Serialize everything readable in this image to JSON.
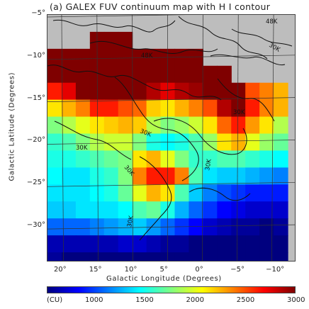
{
  "title": "(a) GALEX FUV continuum map with H I contour",
  "axes": {
    "xlabel": "Galactic Longitude (Degrees)",
    "ylabel": "Galactic Latitude (Degrees)",
    "x_ticks": [
      "20°",
      "15°",
      "10°",
      "5°",
      "0°",
      "−5°",
      "−10°"
    ],
    "y_ticks": [
      "−5°",
      "−10°",
      "−15°",
      "−20°",
      "−25°",
      "−30°"
    ]
  },
  "colorbar": {
    "unit_label": "(CU)",
    "ticks": [
      "1000",
      "1500",
      "2000",
      "2500",
      "3000"
    ],
    "colors": [
      "#00007f",
      "#0000ff",
      "#0080ff",
      "#00ffff",
      "#80ff80",
      "#ffff00",
      "#ff8000",
      "#ff0000",
      "#7f0000"
    ]
  },
  "contours": {
    "labels": [
      "48K",
      "48K",
      "30K",
      "30K",
      "30K",
      "30K",
      "30K",
      "30K",
      "30K"
    ]
  },
  "chart_data": {
    "type": "heatmap",
    "title": "(a) GALEX FUV continuum map with H I contour",
    "xlabel": "Galactic Longitude (Degrees)",
    "ylabel": "Galactic Latitude (Degrees)",
    "xlim": [
      22,
      -13
    ],
    "ylim": [
      -34,
      -5
    ],
    "colorbar_range": [
      1000,
      3000
    ],
    "colorbar_unit": "CU",
    "contour_levels": [
      "30K",
      "48K"
    ],
    "no_data_color": "#bdbdbd",
    "grid": true,
    "rows_lat": [
      -6,
      -8,
      -10,
      -12,
      -14,
      -16,
      -18,
      -20,
      -22,
      -24,
      -26,
      -28,
      -30,
      -32,
      -34
    ],
    "cols_lon": [
      21,
      19,
      17,
      15,
      13,
      11,
      9,
      7,
      5,
      3,
      1,
      -1,
      -3,
      -5,
      -7,
      -9,
      -11
    ],
    "values": [
      [
        null,
        null,
        null,
        null,
        null,
        null,
        null,
        null,
        null,
        null,
        null,
        null,
        null,
        null,
        null,
        null,
        null
      ],
      [
        null,
        null,
        null,
        3000,
        3000,
        3000,
        null,
        null,
        null,
        null,
        null,
        null,
        null,
        null,
        null,
        null,
        null
      ],
      [
        3000,
        3000,
        3000,
        3000,
        3000,
        3000,
        3000,
        3000,
        3000,
        3000,
        3000,
        null,
        null,
        null,
        null,
        null,
        null
      ],
      [
        3000,
        3000,
        3000,
        3000,
        3000,
        3000,
        3000,
        3000,
        3000,
        3000,
        3000,
        3000,
        3000,
        null,
        null,
        null,
        null
      ],
      [
        2700,
        2800,
        3000,
        3000,
        3000,
        3000,
        3000,
        2900,
        2800,
        2900,
        2950,
        3000,
        3000,
        3000,
        2600,
        2500,
        2400
      ],
      [
        2300,
        2400,
        2500,
        2700,
        2700,
        2600,
        2550,
        2350,
        2300,
        2400,
        2500,
        2600,
        2900,
        3000,
        2700,
        2500,
        2400
      ],
      [
        2000,
        2100,
        2200,
        2300,
        2350,
        2400,
        2350,
        2100,
        2000,
        2050,
        2150,
        2300,
        2550,
        2700,
        2450,
        2300,
        2100
      ],
      [
        1850,
        1900,
        2000,
        2100,
        2150,
        2150,
        2000,
        1800,
        1750,
        1800,
        1900,
        2050,
        2300,
        2400,
        2200,
        2050,
        1950
      ],
      [
        1800,
        1800,
        1850,
        1900,
        1950,
        2000,
        2300,
        2400,
        2200,
        2000,
        1850,
        1850,
        1900,
        1900,
        1850,
        1800,
        1750
      ],
      [
        1750,
        1700,
        1700,
        1800,
        1850,
        2000,
        2500,
        2700,
        2700,
        2500,
        1900,
        1700,
        1650,
        1650,
        1600,
        1550,
        1500
      ],
      [
        1700,
        1700,
        1700,
        1750,
        1800,
        1950,
        2200,
        2400,
        2300,
        1900,
        1650,
        1500,
        1400,
        1350,
        1300,
        1300,
        1300
      ],
      [
        1650,
        1650,
        1700,
        1700,
        1700,
        1750,
        1900,
        1950,
        1800,
        1600,
        1450,
        1350,
        1250,
        1200,
        1150,
        1150,
        1150
      ],
      [
        1450,
        1450,
        1450,
        1500,
        1550,
        1600,
        1650,
        1550,
        1450,
        1350,
        1250,
        1150,
        1100,
        1050,
        1050,
        1000,
        1050
      ],
      [
        1100,
        1100,
        1100,
        1100,
        1100,
        1150,
        1150,
        1100,
        1050,
        1050,
        1000,
        1000,
        1000,
        1000,
        1000,
        1000,
        1000
      ],
      [
        1050,
        1000,
        1000,
        1000,
        1000,
        1000,
        1000,
        1000,
        1000,
        1000,
        1000,
        1000,
        1000,
        1000,
        1000,
        1000,
        1000
      ]
    ]
  }
}
